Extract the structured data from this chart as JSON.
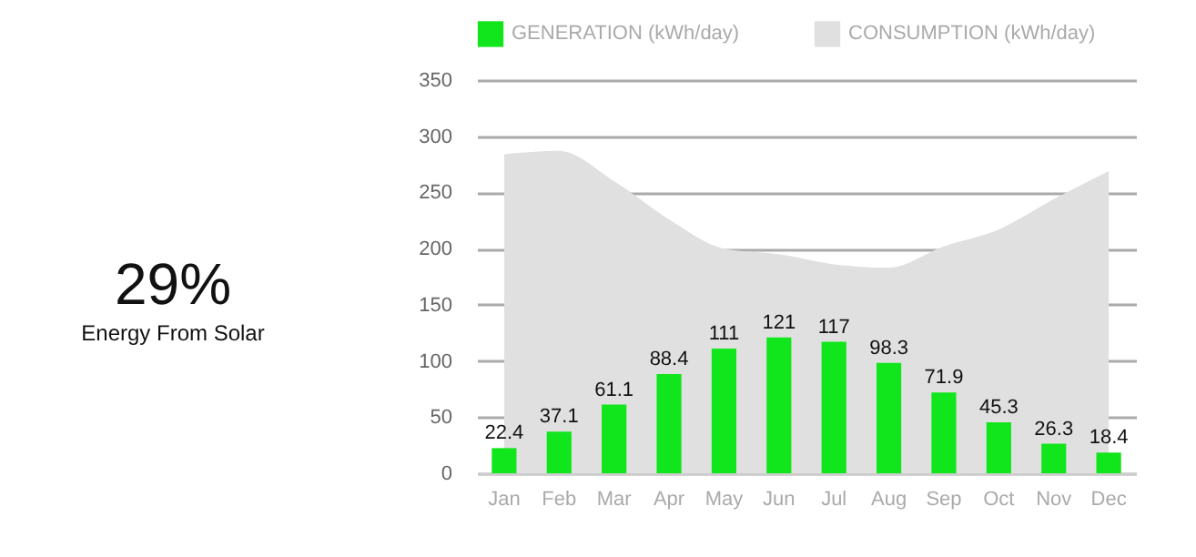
{
  "chart_data": [
    {
      "type": "other",
      "title": "29%",
      "subtitle": "Energy From Solar"
    },
    {
      "type": "bar",
      "categories": [
        "Jan",
        "Feb",
        "Mar",
        "Apr",
        "May",
        "Jun",
        "Jul",
        "Aug",
        "Sep",
        "Oct",
        "Nov",
        "Dec"
      ],
      "series": [
        {
          "name": "GENERATION (kWh/day)",
          "color": "#11e51b",
          "values": [
            22.4,
            37.1,
            61.1,
            88.4,
            111,
            121,
            117,
            98.3,
            71.9,
            45.3,
            26.3,
            18.4
          ],
          "value_labels": [
            "22.4",
            "37.1",
            "61.1",
            "88.4",
            "111",
            "121",
            "117",
            "98.3",
            "71.9",
            "45.3",
            "26.3",
            "18.4"
          ]
        },
        {
          "name": "CONSUMPTION (kWh/day)",
          "type": "area",
          "color": "#e0e0e0",
          "values": [
            284,
            287,
            260,
            226,
            200,
            195,
            186,
            183,
            202,
            217,
            244,
            269
          ]
        }
      ],
      "ylim": [
        0,
        350
      ],
      "yticks": [
        0,
        50,
        100,
        150,
        200,
        250,
        300,
        350
      ],
      "grid": "y",
      "legend": "top"
    }
  ]
}
